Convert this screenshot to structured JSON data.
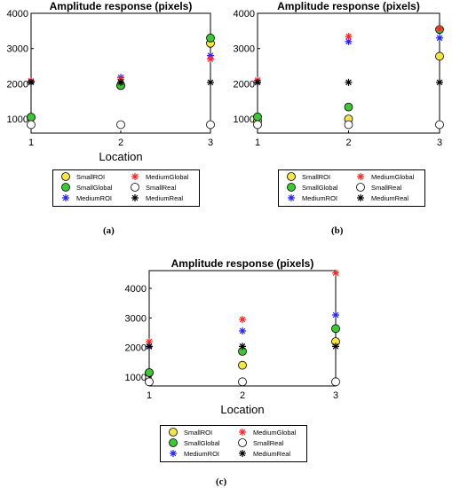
{
  "captions": [
    "(a)",
    "(b)",
    "(c)"
  ],
  "chart_data": [
    {
      "type": "scatter",
      "title": "Amplitude response (pixels)",
      "xlabel": "Location",
      "ylabel": "",
      "xlim": [
        1,
        3
      ],
      "ylim": [
        600,
        4000
      ],
      "xticks": [
        1,
        2,
        3
      ],
      "yticks": [
        1000,
        2000,
        3000,
        4000
      ],
      "series": [
        {
          "name": "SmallROI",
          "marker": "circle",
          "color": "#f5e642",
          "x": [
            1,
            2,
            3
          ],
          "y": [
            1050,
            1950,
            3150
          ]
        },
        {
          "name": "SmallGlobal",
          "marker": "circle",
          "color": "#3cc832",
          "x": [
            1,
            2,
            3
          ],
          "y": [
            1050,
            1950,
            3300
          ]
        },
        {
          "name": "MediumROI",
          "marker": "star",
          "color": "#1f1fff",
          "x": [
            1,
            2,
            3
          ],
          "y": [
            2070,
            2180,
            2800
          ]
        },
        {
          "name": "MediumGlobal",
          "marker": "star",
          "color": "#ff2020",
          "x": [
            1,
            2,
            3
          ],
          "y": [
            2080,
            2130,
            2700
          ]
        },
        {
          "name": "SmallReal",
          "marker": "circle",
          "color": "#ffffff",
          "x": [
            1,
            2,
            3
          ],
          "y": [
            840,
            840,
            840
          ]
        },
        {
          "name": "MediumReal",
          "marker": "star",
          "color": "#000000",
          "x": [
            1,
            2,
            3
          ],
          "y": [
            2040,
            2040,
            2040
          ]
        }
      ]
    },
    {
      "type": "scatter",
      "title": "Amplitude response (pixels)",
      "xlabel": "",
      "ylabel": "",
      "xlim": [
        1,
        3
      ],
      "ylim": [
        600,
        4000
      ],
      "xticks": [
        1,
        2,
        3
      ],
      "yticks": [
        1000,
        2000,
        3000,
        4000
      ],
      "series": [
        {
          "name": "SmallROI",
          "marker": "circle",
          "color": "#f5e642",
          "x": [
            1,
            2,
            3
          ],
          "y": [
            950,
            1000,
            2780
          ]
        },
        {
          "name": "SmallGlobal",
          "marker": "circle",
          "color": "#3cc832",
          "x": [
            1,
            2,
            3
          ],
          "y": [
            1060,
            1340,
            3540
          ]
        },
        {
          "name": "MediumROI",
          "marker": "star",
          "color": "#1f1fff",
          "x": [
            1,
            2,
            3
          ],
          "y": [
            2050,
            3200,
            3300
          ]
        },
        {
          "name": "MediumGlobal",
          "marker": "star",
          "color": "#ff2020",
          "x": [
            1,
            2,
            3
          ],
          "y": [
            2100,
            3340,
            3560
          ]
        },
        {
          "name": "SmallReal",
          "marker": "circle",
          "color": "#ffffff",
          "x": [
            1,
            2,
            3
          ],
          "y": [
            840,
            840,
            840
          ]
        },
        {
          "name": "MediumReal",
          "marker": "star",
          "color": "#000000",
          "x": [
            1,
            2,
            3
          ],
          "y": [
            2040,
            2040,
            2040
          ]
        }
      ]
    },
    {
      "type": "scatter",
      "title": "Amplitude response (pixels)",
      "xlabel": "Location",
      "ylabel": "",
      "xlim": [
        1,
        3
      ],
      "ylim": [
        700,
        4600
      ],
      "xticks": [
        1,
        2,
        3
      ],
      "yticks": [
        1000,
        2000,
        3000,
        4000
      ],
      "series": [
        {
          "name": "SmallROI",
          "marker": "circle",
          "color": "#f5e642",
          "x": [
            1,
            2,
            3
          ],
          "y": [
            1150,
            1400,
            2200
          ]
        },
        {
          "name": "SmallGlobal",
          "marker": "circle",
          "color": "#3cc832",
          "x": [
            1,
            2,
            3
          ],
          "y": [
            1150,
            1870,
            2640
          ]
        },
        {
          "name": "MediumROI",
          "marker": "star",
          "color": "#1f1fff",
          "x": [
            1,
            2,
            3
          ],
          "y": [
            2030,
            2560,
            3100
          ]
        },
        {
          "name": "MediumGlobal",
          "marker": "star",
          "color": "#ff2020",
          "x": [
            1,
            2,
            3
          ],
          "y": [
            2200,
            2950,
            4520
          ]
        },
        {
          "name": "SmallReal",
          "marker": "circle",
          "color": "#ffffff",
          "x": [
            1,
            2,
            3
          ],
          "y": [
            840,
            840,
            840
          ]
        },
        {
          "name": "MediumReal",
          "marker": "star",
          "color": "#000000",
          "x": [
            1,
            2,
            3
          ],
          "y": [
            2040,
            2040,
            2040
          ]
        }
      ]
    }
  ]
}
